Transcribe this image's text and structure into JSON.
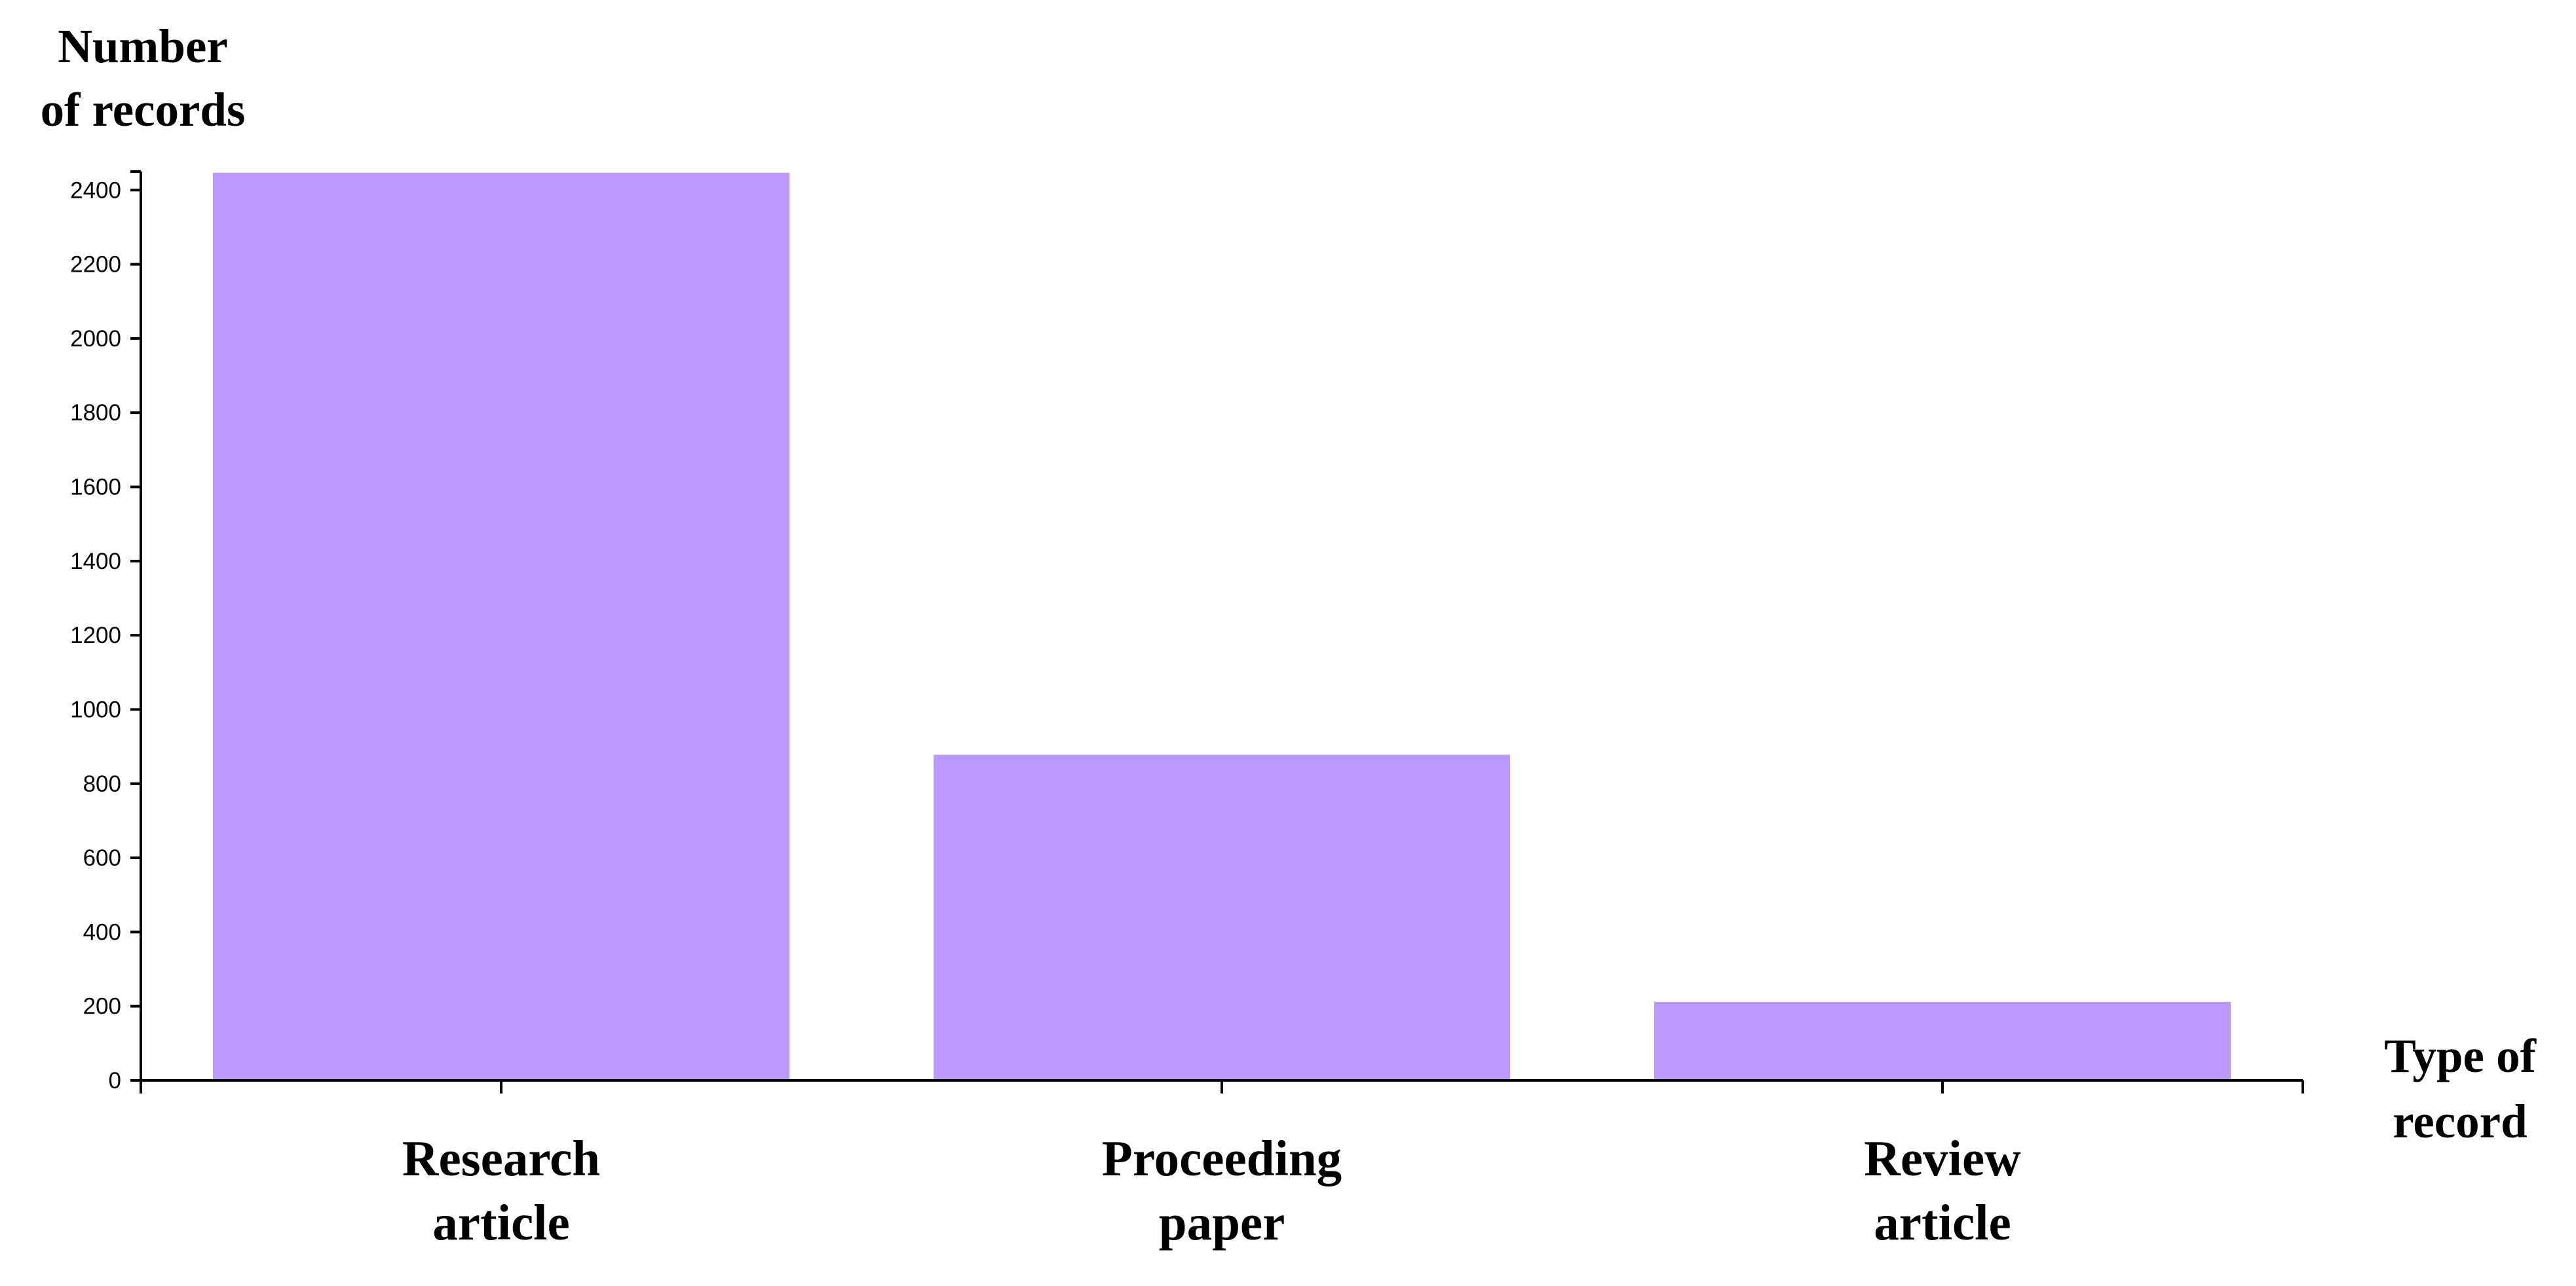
{
  "chart_data": {
    "type": "bar",
    "ylabel": [
      "Number",
      "of records"
    ],
    "xlabel": [
      "Type of",
      "record"
    ],
    "categories": [
      {
        "lines": [
          "Research",
          "article"
        ]
      },
      {
        "lines": [
          "Proceeding",
          "paper"
        ]
      },
      {
        "lines": [
          "Review",
          "article"
        ]
      }
    ],
    "values": [
      2447,
      878,
      212
    ],
    "yticks": [
      0,
      200,
      400,
      600,
      800,
      1000,
      1200,
      1400,
      1600,
      1800,
      2000,
      2200,
      2400
    ],
    "ylim": [
      0,
      2450
    ],
    "grid": false,
    "colors": {
      "bar": "#bb99ff",
      "axis": "#000000"
    }
  }
}
